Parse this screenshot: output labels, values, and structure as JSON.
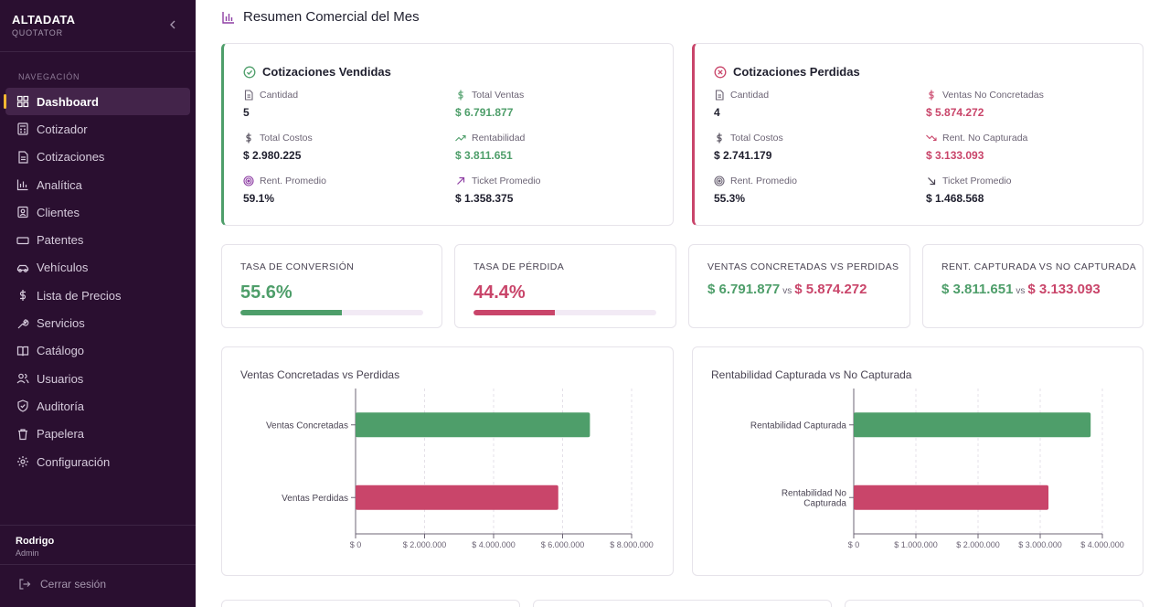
{
  "sidebar": {
    "brand_title": "ALTADATA",
    "brand_subtitle": "QUOTATOR",
    "nav_heading": "NAVEGACIÓN",
    "items": [
      {
        "label": "Dashboard",
        "icon": "grid-icon",
        "active": true
      },
      {
        "label": "Cotizador",
        "icon": "calculator-icon"
      },
      {
        "label": "Cotizaciones",
        "icon": "document-icon"
      },
      {
        "label": "Analítica",
        "icon": "bar-chart-icon"
      },
      {
        "label": "Clientes",
        "icon": "contact-icon"
      },
      {
        "label": "Patentes",
        "icon": "plate-icon"
      },
      {
        "label": "Vehículos",
        "icon": "car-icon"
      },
      {
        "label": "Lista de Precios",
        "icon": "dollar-icon"
      },
      {
        "label": "Servicios",
        "icon": "wrench-icon"
      },
      {
        "label": "Catálogo",
        "icon": "book-icon"
      },
      {
        "label": "Usuarios",
        "icon": "users-icon"
      },
      {
        "label": "Auditoría",
        "icon": "shield-icon"
      },
      {
        "label": "Papelera",
        "icon": "trash-icon"
      },
      {
        "label": "Configuración",
        "icon": "gear-icon"
      }
    ],
    "user_name": "Rodrigo",
    "user_role": "Admin",
    "logout_label": "Cerrar sesión"
  },
  "page": {
    "title": "Resumen Comercial del Mes"
  },
  "sold": {
    "title": "Cotizaciones Vendidas",
    "cantidad_label": "Cantidad",
    "cantidad_value": "5",
    "total_ventas_label": "Total Ventas",
    "total_ventas_value": "$ 6.791.877",
    "total_costos_label": "Total Costos",
    "total_costos_value": "$ 2.980.225",
    "rentabilidad_label": "Rentabilidad",
    "rentabilidad_value": "$ 3.811.651",
    "rent_promedio_label": "Rent. Promedio",
    "rent_promedio_value": "59.1%",
    "ticket_label": "Ticket Promedio",
    "ticket_value": "$ 1.358.375"
  },
  "lost": {
    "title": "Cotizaciones Perdidas",
    "cantidad_label": "Cantidad",
    "cantidad_value": "4",
    "ventas_nc_label": "Ventas No Concretadas",
    "ventas_nc_value": "$ 5.874.272",
    "total_costos_label": "Total Costos",
    "total_costos_value": "$ 2.741.179",
    "rent_nc_label": "Rent. No Capturada",
    "rent_nc_value": "$ 3.133.093",
    "rent_promedio_label": "Rent. Promedio",
    "rent_promedio_value": "55.3%",
    "ticket_label": "Ticket Promedio",
    "ticket_value": "$ 1.468.568"
  },
  "kpis": {
    "conversion_label": "TASA DE CONVERSIÓN",
    "conversion_value": "55.6%",
    "conversion_fraction": 0.556,
    "loss_label": "TASA DE PÉRDIDA",
    "loss_value": "44.4%",
    "loss_fraction": 0.444,
    "ventas_vs_label": "VENTAS CONCRETADAS VS PERDIDAS",
    "ventas_vs_a": "$ 6.791.877",
    "ventas_vs_b": "$ 5.874.272",
    "rent_vs_label": "RENT. CAPTURADA VS NO CAPTURADA",
    "rent_vs_a": "$ 3.811.651",
    "rent_vs_b": "$ 3.133.093",
    "vs_word": "vs"
  },
  "colors": {
    "green": "#4e9e6a",
    "red": "#c9456a"
  },
  "chart_data": [
    {
      "type": "bar",
      "orientation": "horizontal",
      "title": "Ventas Concretadas vs Perdidas",
      "categories": [
        "Ventas Concretadas",
        "Ventas Perdidas"
      ],
      "values": [
        6791877,
        5874272
      ],
      "colors": [
        "#4e9e6a",
        "#c9456a"
      ],
      "xlim": [
        0,
        8000000
      ],
      "xticks": [
        0,
        2000000,
        4000000,
        6000000,
        8000000
      ],
      "xtick_labels": [
        "$ 0",
        "$ 2.000.000",
        "$ 4.000.000",
        "$ 6.000.000",
        "$ 8.000.000"
      ],
      "grid": true
    },
    {
      "type": "bar",
      "orientation": "horizontal",
      "title": "Rentabilidad Capturada vs No Capturada",
      "categories": [
        "Rentabilidad Capturada",
        "Rentabilidad No Capturada"
      ],
      "category_lines": [
        [
          "Rentabilidad Capturada"
        ],
        [
          "Rentabilidad No",
          "Capturada"
        ]
      ],
      "values": [
        3811651,
        3133093
      ],
      "colors": [
        "#4e9e6a",
        "#c9456a"
      ],
      "xlim": [
        0,
        4000000
      ],
      "xticks": [
        0,
        1000000,
        2000000,
        3000000,
        4000000
      ],
      "xtick_labels": [
        "$ 0",
        "$ 1.000.000",
        "$ 2.000.000",
        "$ 3.000.000",
        "$ 4.000.000"
      ],
      "grid": true
    }
  ]
}
